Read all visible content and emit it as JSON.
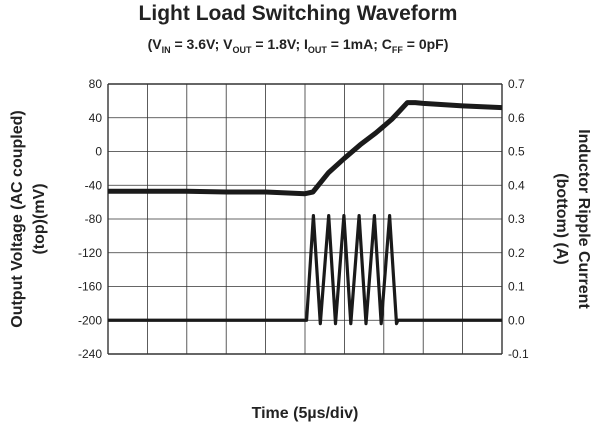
{
  "chart_data": {
    "type": "line",
    "title": "Light Load Switching Waveform",
    "subtitle_parts": [
      {
        "t": "(V"
      },
      {
        "sub": "IN"
      },
      {
        "t": " = 3.6V; V"
      },
      {
        "sub": "OUT"
      },
      {
        "t": " = 1.8V; I"
      },
      {
        "sub": "OUT"
      },
      {
        "t": " = 1mA; C"
      },
      {
        "sub": "FF"
      },
      {
        "t": " = 0pF)"
      }
    ],
    "xlabel": "Time (5µs/div)",
    "ylabel_left_lines": [
      "Output Voltage (AC coupled)",
      "(top)(mV)"
    ],
    "ylabel_right_lines": [
      "Inductor Ripple Current",
      "(bottom) (A)"
    ],
    "x_divisions": 10,
    "x_unit": "µs",
    "xlim": [
      0,
      50
    ],
    "ylim_left": [
      -240,
      80
    ],
    "ylim_right": [
      -0.1,
      0.7
    ],
    "left_ticks": [
      "80",
      "40",
      "0",
      "-40",
      "-80",
      "-120",
      "-160",
      "-200",
      "-240"
    ],
    "right_ticks": [
      "0.7",
      "0.6",
      "0.5",
      "0.4",
      "0.3",
      "0.2",
      "0.1",
      "0.0",
      "-0.1"
    ],
    "grid": true,
    "series": [
      {
        "axis": "left",
        "x": [
          0,
          5,
          10,
          15,
          20,
          25,
          26,
          28,
          30,
          32,
          34,
          36,
          37,
          38,
          39,
          40,
          45,
          50
        ],
        "y": [
          -47,
          -47,
          -47,
          -48,
          -48,
          -50,
          -48,
          -25,
          -8,
          8,
          22,
          38,
          48,
          58,
          58,
          57,
          54,
          52
        ]
      },
      {
        "axis": "right",
        "pulse_time_range": [
          25.2,
          36.8
        ],
        "pulse_count": 6,
        "pulse_peak": 0.31,
        "pulse_trough": -0.01,
        "baseline": 0.0
      }
    ]
  }
}
